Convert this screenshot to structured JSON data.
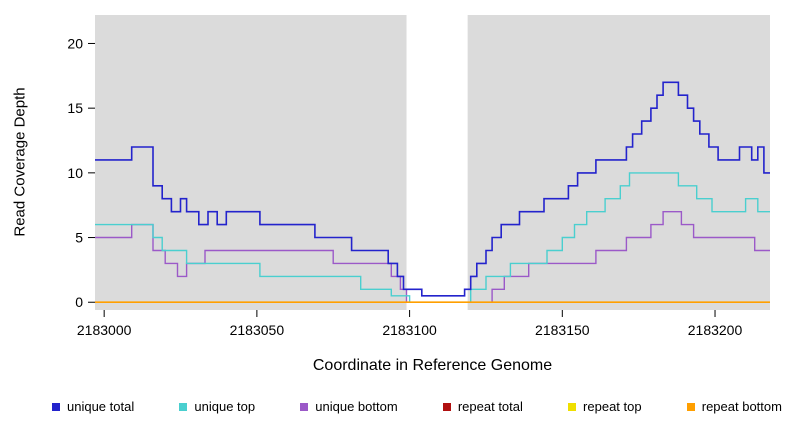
{
  "chart_data": {
    "type": "line",
    "subtype": "step",
    "title": "",
    "xlabel": "Coordinate in Reference Genome",
    "ylabel": "Read Coverage Depth",
    "xlim": [
      2182997,
      2183218
    ],
    "ylim": [
      0,
      22
    ],
    "x_ticks": [
      2183000,
      2183050,
      2183100,
      2183150,
      2183200
    ],
    "y_ticks": [
      0,
      5,
      10,
      15,
      20
    ],
    "grid": false,
    "plot_background": "#DBDBDB",
    "masked_region": {
      "start": 2183099,
      "end": 2183119,
      "color": "#FFFFFF"
    },
    "legend_position": "bottom",
    "series": [
      {
        "name": "unique total",
        "color": "#2323CC",
        "points": [
          [
            2182997,
            11
          ],
          [
            2183009,
            12
          ],
          [
            2183016,
            9
          ],
          [
            2183019,
            8
          ],
          [
            2183022,
            7
          ],
          [
            2183025,
            8
          ],
          [
            2183027,
            7
          ],
          [
            2183031,
            6
          ],
          [
            2183034,
            7
          ],
          [
            2183037,
            6
          ],
          [
            2183040,
            7
          ],
          [
            2183051,
            6
          ],
          [
            2183069,
            5
          ],
          [
            2183081,
            4
          ],
          [
            2183093,
            3
          ],
          [
            2183096,
            2
          ],
          [
            2183098,
            1
          ],
          [
            2183104,
            0.5
          ],
          [
            2183118,
            1
          ],
          [
            2183120,
            2
          ],
          [
            2183122,
            3
          ],
          [
            2183125,
            4
          ],
          [
            2183127,
            5
          ],
          [
            2183130,
            6
          ],
          [
            2183136,
            7
          ],
          [
            2183144,
            8
          ],
          [
            2183152,
            9
          ],
          [
            2183155,
            10
          ],
          [
            2183161,
            11
          ],
          [
            2183171,
            12
          ],
          [
            2183173,
            13
          ],
          [
            2183176,
            14
          ],
          [
            2183179,
            15
          ],
          [
            2183181,
            16
          ],
          [
            2183183,
            17
          ],
          [
            2183188,
            16
          ],
          [
            2183191,
            15
          ],
          [
            2183193,
            14
          ],
          [
            2183195,
            13
          ],
          [
            2183198,
            12
          ],
          [
            2183201,
            11
          ],
          [
            2183208,
            12
          ],
          [
            2183212,
            11
          ],
          [
            2183214,
            12
          ],
          [
            2183216,
            10
          ]
        ]
      },
      {
        "name": "unique top",
        "color": "#4ACFCF",
        "points": [
          [
            2182997,
            6
          ],
          [
            2183016,
            5
          ],
          [
            2183019,
            4
          ],
          [
            2183027,
            3
          ],
          [
            2183051,
            2
          ],
          [
            2183084,
            1
          ],
          [
            2183094,
            0.5
          ],
          [
            2183100,
            0
          ],
          [
            2183120,
            1
          ],
          [
            2183125,
            2
          ],
          [
            2183133,
            3
          ],
          [
            2183145,
            4
          ],
          [
            2183150,
            5
          ],
          [
            2183154,
            6
          ],
          [
            2183158,
            7
          ],
          [
            2183164,
            8
          ],
          [
            2183169,
            9
          ],
          [
            2183172,
            10
          ],
          [
            2183188,
            9
          ],
          [
            2183194,
            8
          ],
          [
            2183199,
            7
          ],
          [
            2183210,
            8
          ],
          [
            2183214,
            7
          ]
        ]
      },
      {
        "name": "unique bottom",
        "color": "#9B59C8",
        "points": [
          [
            2182997,
            5
          ],
          [
            2183009,
            6
          ],
          [
            2183016,
            4
          ],
          [
            2183020,
            3
          ],
          [
            2183024,
            2
          ],
          [
            2183027,
            3
          ],
          [
            2183033,
            4
          ],
          [
            2183075,
            3
          ],
          [
            2183094,
            2
          ],
          [
            2183097,
            1
          ],
          [
            2183099,
            0
          ],
          [
            2183127,
            1
          ],
          [
            2183131,
            2
          ],
          [
            2183139,
            3
          ],
          [
            2183161,
            4
          ],
          [
            2183171,
            5
          ],
          [
            2183179,
            6
          ],
          [
            2183183,
            7
          ],
          [
            2183189,
            6
          ],
          [
            2183193,
            5
          ],
          [
            2183213,
            4
          ]
        ]
      },
      {
        "name": "repeat total",
        "color": "#B01010",
        "points": [
          [
            2182997,
            0
          ]
        ]
      },
      {
        "name": "repeat top",
        "color": "#EFDF00",
        "points": [
          [
            2182997,
            0
          ]
        ]
      },
      {
        "name": "repeat bottom",
        "color": "#FF9F00",
        "points": [
          [
            2182997,
            0
          ]
        ]
      }
    ]
  }
}
